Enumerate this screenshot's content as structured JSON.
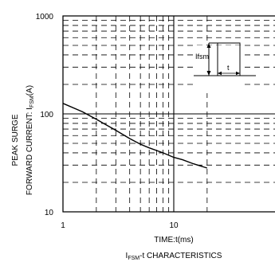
{
  "chart_data": {
    "type": "line",
    "title": "",
    "caption": {
      "prefix": "I",
      "subscript": "FSM",
      "suffix": "-t CHARACTERISTICS"
    },
    "xlabel": "TIME:t(ms)",
    "ylabel": {
      "line1": "PEAK SURGE",
      "line2_prefix": "FORWARD CURRENT: I",
      "line2_subscript": "FSM",
      "line2_suffix": "(A)"
    },
    "x_scale": "log",
    "y_scale": "log",
    "xlim": [
      1,
      20
    ],
    "ylim": [
      10,
      1000
    ],
    "x_tick_labels": [
      {
        "value": 1,
        "label": "1"
      },
      {
        "value": 10,
        "label": "10"
      }
    ],
    "y_tick_labels": [
      {
        "value": 10,
        "label": "10"
      },
      {
        "value": 100,
        "label": "100"
      },
      {
        "value": 1000,
        "label": "1000"
      }
    ],
    "grid": true,
    "series": [
      {
        "x": [
          1.0,
          1.5,
          2.0,
          3.0,
          4.0,
          5.0,
          6.0,
          8.0,
          10.0,
          12.0,
          15.0,
          20.0
        ],
        "y": [
          128,
          105,
          88,
          68,
          56,
          49,
          45,
          40,
          36,
          34,
          31,
          28
        ]
      }
    ],
    "inset": {
      "label": "Ifsm",
      "width_label": "t"
    }
  }
}
